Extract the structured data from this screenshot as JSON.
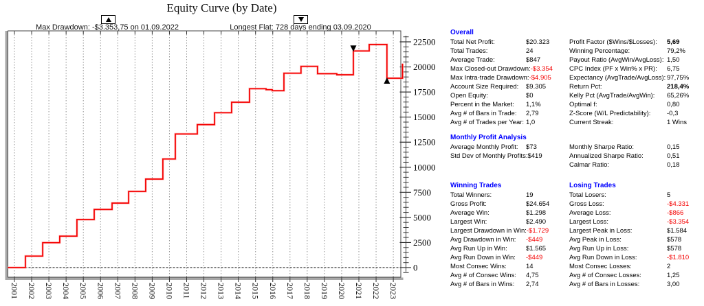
{
  "colors": {
    "curve": "#f40000",
    "curve_halo": "#ffb0b0",
    "negative": "#f40000",
    "section_header": "#0000ff",
    "grid": "#909090",
    "axis": "#333333",
    "frame_gray": "#a8a8a8"
  },
  "chart": {
    "title": "Equity Curve (by Date)",
    "annotations": {
      "max_drawdown": {
        "icon": "triangle-up",
        "text": "Max Drawdown: -$3.353,75 on 01.09.2022"
      },
      "longest_flat": {
        "icon": "triangle-down",
        "text": "Longest Flat: 728 days ending 03.09.2020"
      }
    }
  },
  "chart_data": {
    "type": "line",
    "subtype": "step",
    "title": "Equity Curve (by Date)",
    "xlabel": "",
    "ylabel": "",
    "grid": "vertical-dashed",
    "legend": "none",
    "x_ticks": [
      2001,
      2002,
      2003,
      2004,
      2005,
      2006,
      2007,
      2008,
      2009,
      2010,
      2011,
      2012,
      2013,
      2014,
      2015,
      2016,
      2017,
      2018,
      2019,
      2020,
      2021,
      2022,
      2023
    ],
    "y_ticks": [
      0,
      2500,
      5000,
      7500,
      10000,
      12500,
      15000,
      17500,
      20000,
      22500
    ],
    "y_minor_step": 500,
    "xlim": [
      2000.62,
      2023.44
    ],
    "ylim": [
      -950,
      23600
    ],
    "zero_line": true,
    "series": [
      {
        "name": "Equity",
        "color": "#f40000",
        "step": true,
        "points": [
          [
            2000.62,
            0
          ],
          [
            2001.64,
            1140
          ],
          [
            2002.64,
            2480
          ],
          [
            2003.63,
            3130
          ],
          [
            2004.63,
            4790
          ],
          [
            2005.63,
            5790
          ],
          [
            2006.67,
            6430
          ],
          [
            2007.63,
            7590
          ],
          [
            2008.62,
            8820
          ],
          [
            2009.62,
            10825
          ],
          [
            2010.34,
            13315
          ],
          [
            2011.62,
            14250
          ],
          [
            2012.62,
            15435
          ],
          [
            2013.61,
            16480
          ],
          [
            2014.65,
            17830
          ],
          [
            2015.61,
            17730
          ],
          [
            2015.97,
            17630
          ],
          [
            2016.65,
            19375
          ],
          [
            2017.64,
            20060
          ],
          [
            2018.6,
            19330
          ],
          [
            2019.72,
            19215
          ],
          [
            2020.68,
            21590
          ],
          [
            2021.6,
            22230
          ],
          [
            2022.63,
            18877
          ],
          [
            2023.63,
            20323
          ]
        ]
      }
    ],
    "markers": [
      {
        "shape": "triangle-down",
        "x": 2020.68,
        "value": 21590,
        "name": "longest-flat-end-marker"
      },
      {
        "shape": "triangle-up",
        "x": 2022.63,
        "value": 18877,
        "name": "max-drawdown-marker"
      }
    ]
  },
  "stats": {
    "overall": {
      "title": "Overall",
      "left": [
        {
          "label": "Total Net Profit:",
          "value": "$20.323"
        },
        {
          "label": "Total Trades:",
          "value": "24"
        },
        {
          "label": "Average Trade:",
          "value": "$847"
        },
        {
          "label": "Max Closed-out Drawdown:",
          "value": "-$3.354",
          "neg": true
        },
        {
          "label": "Max Intra-trade Drawdown:",
          "value": "-$4.905",
          "neg": true
        },
        {
          "label": "Account Size Required:",
          "value": "$9.305"
        },
        {
          "label": "Open Equity:",
          "value": "$0"
        },
        {
          "label": "Percent in the Market:",
          "value": "1,1%"
        },
        {
          "label": "Avg # of Bars in Trade:",
          "value": "2,79"
        },
        {
          "label": "Avg # of Trades per Year:",
          "value": "1,0"
        }
      ],
      "right": [
        {
          "label": "Profit Factor ($Wins/$Losses):",
          "value": "5,69",
          "bold": true
        },
        {
          "label": "Winning Percentage:",
          "value": "79,2%"
        },
        {
          "label": "Payout Ratio (AvgWin/AvgLoss):",
          "value": "1,50"
        },
        {
          "label": "CPC Index (PF x Win% x PR):",
          "value": "6,75"
        },
        {
          "label": "Expectancy (AvgTrade/AvgLoss):",
          "value": "97,75%"
        },
        {
          "label": "Return Pct:",
          "value": "218,4%",
          "bold": true
        },
        {
          "label": "Kelly Pct (AvgTrade/AvgWin):",
          "value": "65,26%"
        },
        {
          "label": "Optimal f:",
          "value": "0,80"
        },
        {
          "label": "Z-Score (W/L Predictability):",
          "value": "-0,3"
        },
        {
          "label": "Current Streak:",
          "value": "1 Wins"
        }
      ]
    },
    "monthly": {
      "title": "Monthly Profit Analysis",
      "left": [
        {
          "label": "Average Monthly Profit:",
          "value": "$73"
        },
        {
          "label": "Std Dev of Monthly Profits:",
          "value": "$419"
        }
      ],
      "right": [
        {
          "label": "Monthly Sharpe Ratio:",
          "value": "0,15"
        },
        {
          "label": "Annualized Sharpe Ratio:",
          "value": "0,51"
        },
        {
          "label": "Calmar Ratio:",
          "value": "0,18"
        }
      ]
    },
    "winning": {
      "title": "Winning Trades",
      "rows": [
        {
          "label": "Total Winners:",
          "value": "19"
        },
        {
          "label": "Gross Profit:",
          "value": "$24.654"
        },
        {
          "label": "Average Win:",
          "value": "$1.298"
        },
        {
          "label": "Largest Win:",
          "value": "$2.490"
        },
        {
          "label": "Largest Drawdown in Win:",
          "value": "-$1.729",
          "neg": true
        },
        {
          "label": "Avg Drawdown in Win:",
          "value": "-$449",
          "neg": true
        },
        {
          "label": "Avg Run Up in Win:",
          "value": "$1.565"
        },
        {
          "label": "Avg Run Down in Win:",
          "value": "-$449",
          "neg": true
        },
        {
          "label": "Most Consec Wins:",
          "value": "14"
        },
        {
          "label": "Avg # of Consec Wins:",
          "value": "4,75"
        },
        {
          "label": "Avg # of Bars in Wins:",
          "value": "2,74"
        }
      ]
    },
    "losing": {
      "title": "Losing Trades",
      "rows": [
        {
          "label": "Total Losers:",
          "value": "5"
        },
        {
          "label": "Gross Loss:",
          "value": "-$4.331",
          "neg": true
        },
        {
          "label": "Average Loss:",
          "value": "-$866",
          "neg": true
        },
        {
          "label": "Largest Loss:",
          "value": "-$3.354",
          "neg": true
        },
        {
          "label": "Largest Peak in Loss:",
          "value": "$1.584"
        },
        {
          "label": "Avg Peak in Loss:",
          "value": "$578"
        },
        {
          "label": "Avg Run Up in Loss:",
          "value": "$578"
        },
        {
          "label": "Avg Run Down in Loss:",
          "value": "-$1.810",
          "neg": true
        },
        {
          "label": "Most Consec Losses:",
          "value": "2"
        },
        {
          "label": "Avg # of Consec Losses:",
          "value": "1,25"
        },
        {
          "label": "Avg # of Bars in Losses:",
          "value": "3,00"
        }
      ]
    }
  }
}
